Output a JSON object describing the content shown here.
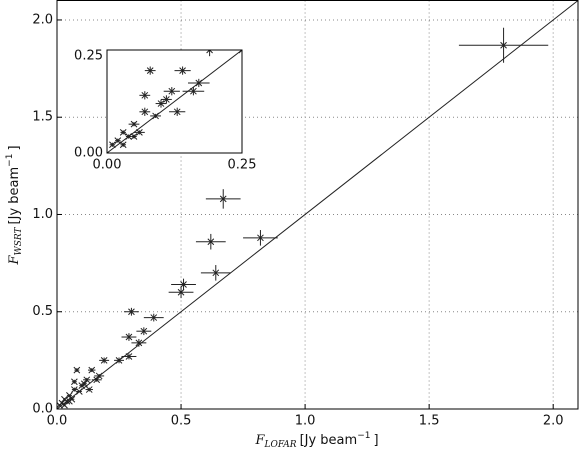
{
  "chart_data": {
    "type": "errorbar-scatter",
    "xlabel": {
      "symbol": "F",
      "subscript": "LOFAR",
      "unit": "[Jy beam",
      "exponent": "−1",
      "close": "]"
    },
    "ylabel": {
      "symbol": "F",
      "subscript": "WSRT",
      "unit": "[Jy beam",
      "exponent": "−1",
      "close": "]"
    },
    "xlim": [
      0,
      2.1
    ],
    "ylim": [
      0,
      2.1
    ],
    "xticks": [
      {
        "value": 0,
        "label": "0.0"
      },
      {
        "value": 0.5,
        "label": "0.5"
      },
      {
        "value": 1,
        "label": "1.0"
      },
      {
        "value": 1.5,
        "label": "1.5"
      },
      {
        "value": 2,
        "label": "2.0"
      }
    ],
    "yticks": [
      {
        "value": 0,
        "label": "0.0"
      },
      {
        "value": 0.5,
        "label": "0.5"
      },
      {
        "value": 1,
        "label": "1.0"
      },
      {
        "value": 1.5,
        "label": "1.5"
      },
      {
        "value": 2,
        "label": "2.0"
      }
    ],
    "grid": true,
    "identity_line": true,
    "color": "#222222",
    "x": [
      1.8,
      0.67,
      0.62,
      0.82,
      0.64,
      0.51,
      0.5,
      0.3,
      0.39,
      0.35,
      0.29,
      0.33,
      0.29,
      0.25,
      0.19,
      0.14,
      0.08,
      0.17,
      0.12,
      0.1,
      0.07,
      0.05,
      0.03,
      0.02,
      0.04,
      0.01,
      0.06,
      0.09,
      0.13,
      0.11,
      0.16,
      0.07,
      0.05,
      0.03
    ],
    "y": [
      1.87,
      1.08,
      0.86,
      0.88,
      0.7,
      0.64,
      0.6,
      0.5,
      0.47,
      0.4,
      0.37,
      0.34,
      0.27,
      0.25,
      0.25,
      0.2,
      0.2,
      0.17,
      0.15,
      0.12,
      0.1,
      0.07,
      0.05,
      0.03,
      0.04,
      0.02,
      0.05,
      0.09,
      0.1,
      0.13,
      0.15,
      0.14,
      0.04,
      0.02
    ],
    "xerr": [
      0.18,
      0.07,
      0.06,
      0.07,
      0.06,
      0.05,
      0.05,
      0.03,
      0.04,
      0.03,
      0.03,
      0.03,
      0.03,
      0.02,
      0.02,
      0.015,
      0.01,
      0.02,
      0.015,
      0.01,
      0.01,
      0.01,
      0.005,
      0.005,
      0.005,
      0.005,
      0.01,
      0.01,
      0.015,
      0.01,
      0.02,
      0.01,
      0.005,
      0.005
    ],
    "yerr": [
      0.09,
      0.05,
      0.04,
      0.04,
      0.04,
      0.03,
      0.03,
      0.02,
      0.02,
      0.02,
      0.02,
      0.02,
      0.015,
      0.015,
      0.015,
      0.01,
      0.01,
      0.01,
      0.01,
      0.01,
      0.01,
      0.005,
      0.005,
      0.005,
      0.005,
      0.005,
      0.005,
      0.005,
      0.01,
      0.01,
      0.01,
      0.01,
      0.005,
      0.005
    ],
    "inset": {
      "xlim": [
        0,
        0.25
      ],
      "ylim": [
        0,
        0.25
      ],
      "xticks": [
        {
          "value": 0,
          "label": "0.00"
        },
        {
          "value": 0.25,
          "label": "0.25"
        }
      ],
      "yticks": [
        {
          "value": 0,
          "label": "0.00"
        },
        {
          "value": 0.25,
          "label": "0.25"
        }
      ]
    }
  }
}
